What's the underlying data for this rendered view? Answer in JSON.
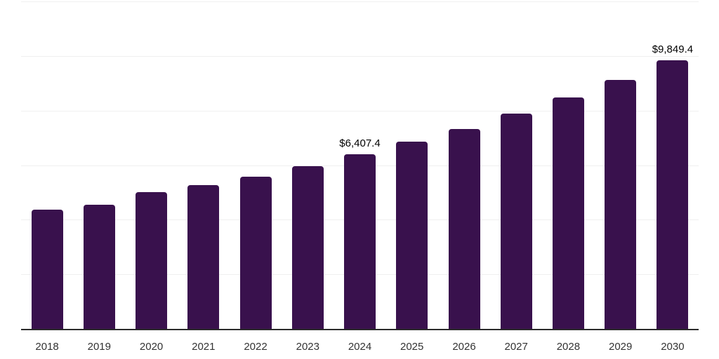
{
  "chart_data": {
    "type": "bar",
    "title": "",
    "xlabel": "",
    "ylabel": "",
    "categories": [
      "2018",
      "2019",
      "2020",
      "2021",
      "2022",
      "2023",
      "2024",
      "2025",
      "2026",
      "2027",
      "2028",
      "2029",
      "2030"
    ],
    "values": [
      4360,
      4540,
      5000,
      5260,
      5590,
      5950,
      6407.4,
      6850,
      7330,
      7900,
      8490,
      9130,
      9849.4
    ],
    "value_labels": [
      null,
      null,
      null,
      null,
      null,
      null,
      "$6,407.4",
      null,
      null,
      null,
      null,
      null,
      "$9,849.4"
    ],
    "ylim": [
      0,
      12000
    ],
    "grid_interval": 2000,
    "grid": "horizontal-only",
    "y_axis_tick_labels": "none",
    "legend": "none",
    "colors": {
      "bar": "#39114D",
      "gridline": "#F0F0F0",
      "axis": "#2B2B2B",
      "tick_label": "#333333",
      "value_label": "#000000",
      "background": "#FFFFFF"
    }
  }
}
